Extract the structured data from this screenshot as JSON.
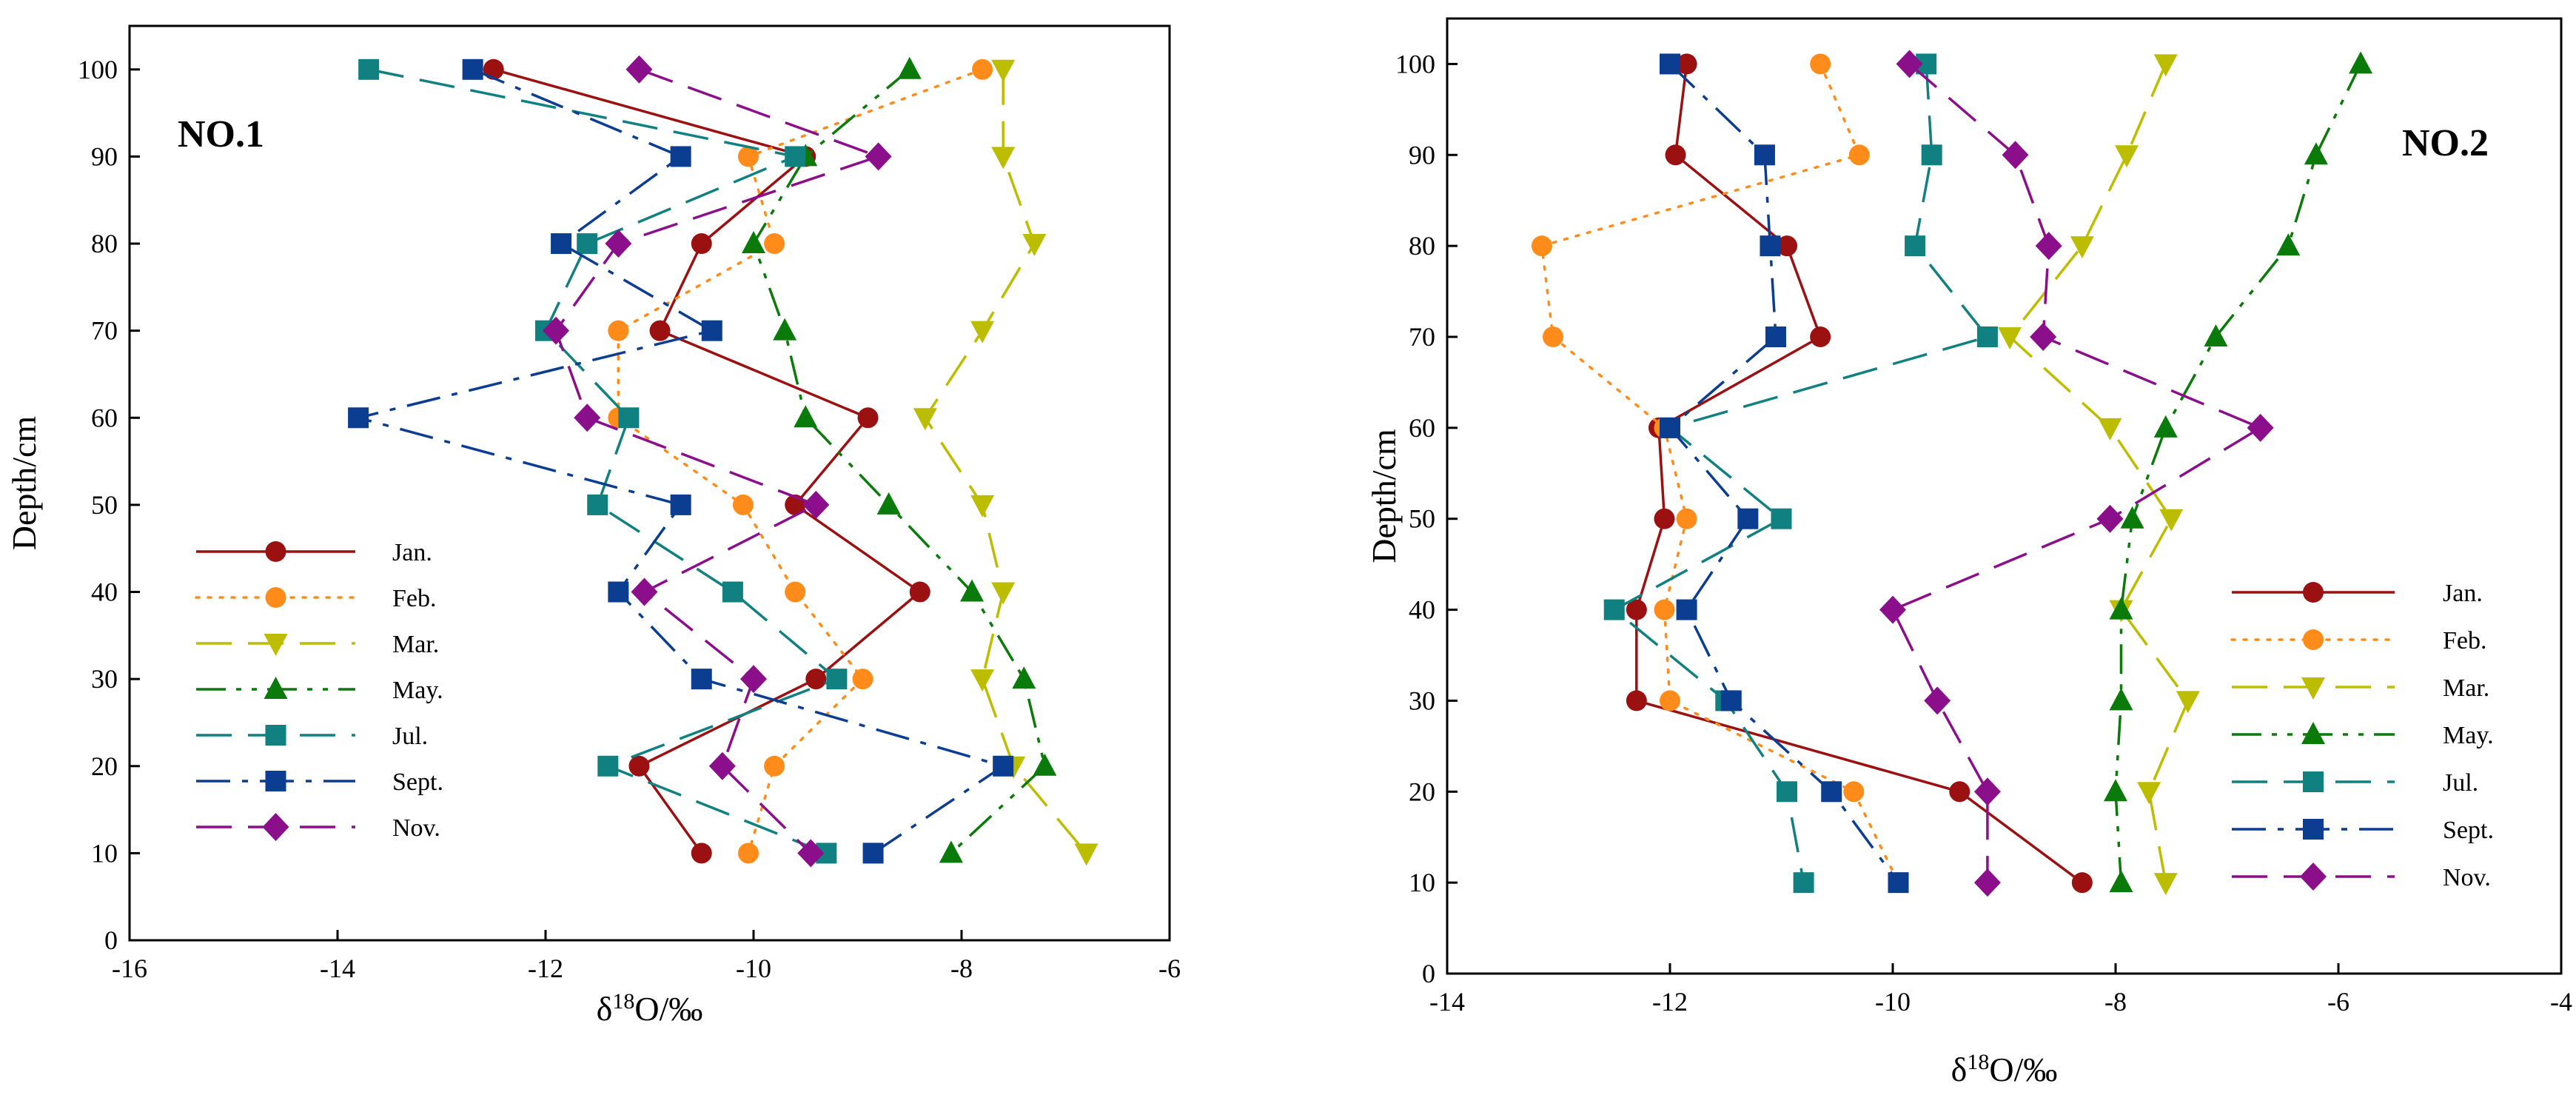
{
  "chart_data": [
    {
      "type": "line",
      "title": "NO.1",
      "xlabel": "δ18O/‰",
      "xlabel_base": "δ",
      "xlabel_sup": "18",
      "xlabel_rest": "O/‰",
      "ylabel": "Depth/cm",
      "xlim": [
        -16,
        -6
      ],
      "ylim": [
        0,
        105
      ],
      "xticks": [
        -16,
        -14,
        -12,
        -10,
        -8,
        -6
      ],
      "yticks": [
        0,
        10,
        20,
        30,
        40,
        50,
        60,
        70,
        80,
        90,
        100
      ],
      "legend_position": "center-left",
      "series": [
        {
          "name": "Jan.",
          "color": "#9B1010",
          "marker": "circle",
          "dash": "solid",
          "points": [
            [
              -12.5,
              100
            ],
            [
              -9.5,
              90
            ],
            [
              -10.5,
              80
            ],
            [
              -10.9,
              70
            ],
            [
              -8.9,
              60
            ],
            [
              -9.6,
              50
            ],
            [
              -8.4,
              40
            ],
            [
              -9.4,
              30
            ],
            [
              -11.1,
              20
            ],
            [
              -10.5,
              10
            ]
          ]
        },
        {
          "name": "Feb.",
          "color": "#FF8C1A",
          "marker": "circle",
          "dash": "dot",
          "points": [
            [
              -7.8,
              100
            ],
            [
              -10.05,
              90
            ],
            [
              -9.8,
              80
            ],
            [
              -11.3,
              70
            ],
            [
              -11.3,
              60
            ],
            [
              -10.1,
              50
            ],
            [
              -9.6,
              40
            ],
            [
              -8.95,
              30
            ],
            [
              -9.8,
              20
            ],
            [
              -10.05,
              10
            ]
          ]
        },
        {
          "name": "Mar.",
          "color": "#BDBD00",
          "marker": "triangle-down",
          "dash": "long-dash",
          "points": [
            [
              -7.6,
              100
            ],
            [
              -7.6,
              90
            ],
            [
              -7.3,
              80
            ],
            [
              -7.8,
              70
            ],
            [
              -8.35,
              60
            ],
            [
              -7.8,
              50
            ],
            [
              -7.6,
              40
            ],
            [
              -7.8,
              30
            ],
            [
              -7.5,
              20
            ],
            [
              -6.8,
              10
            ]
          ]
        },
        {
          "name": "May.",
          "color": "#0A7A0A",
          "marker": "triangle-up",
          "dash": "dash-dot-dot",
          "points": [
            [
              -8.5,
              100
            ],
            [
              -9.5,
              90
            ],
            [
              -10.0,
              80
            ],
            [
              -9.7,
              70
            ],
            [
              -9.5,
              60
            ],
            [
              -8.7,
              50
            ],
            [
              -7.9,
              40
            ],
            [
              -7.4,
              30
            ],
            [
              -7.2,
              20
            ],
            [
              -8.1,
              10
            ]
          ]
        },
        {
          "name": "Jul.",
          "color": "#118080",
          "marker": "square",
          "dash": "long-dash",
          "points": [
            [
              -13.7,
              100
            ],
            [
              -9.6,
              90
            ],
            [
              -11.6,
              80
            ],
            [
              -12.0,
              70
            ],
            [
              -11.2,
              60
            ],
            [
              -11.5,
              50
            ],
            [
              -10.2,
              40
            ],
            [
              -9.2,
              30
            ],
            [
              -11.4,
              20
            ],
            [
              -9.3,
              10
            ]
          ]
        },
        {
          "name": "Sept.",
          "color": "#0B3D91",
          "marker": "square",
          "dash": "dash-dot",
          "points": [
            [
              -12.7,
              100
            ],
            [
              -10.7,
              90
            ],
            [
              -11.85,
              80
            ],
            [
              -10.4,
              70
            ],
            [
              -13.8,
              60
            ],
            [
              -10.7,
              50
            ],
            [
              -11.3,
              40
            ],
            [
              -10.5,
              30
            ],
            [
              -7.6,
              20
            ],
            [
              -8.85,
              10
            ]
          ]
        },
        {
          "name": "Nov.",
          "color": "#8B0F8B",
          "marker": "diamond",
          "dash": "long-dash",
          "points": [
            [
              -11.1,
              100
            ],
            [
              -8.8,
              90
            ],
            [
              -11.3,
              80
            ],
            [
              -11.9,
              70
            ],
            [
              -11.6,
              60
            ],
            [
              -9.4,
              50
            ],
            [
              -11.05,
              40
            ],
            [
              -10.0,
              30
            ],
            [
              -10.3,
              20
            ],
            [
              -9.45,
              10
            ]
          ]
        }
      ]
    },
    {
      "type": "line",
      "title": "NO.2",
      "xlabel": "δ18O/‰",
      "xlabel_base": "δ",
      "xlabel_sup": "18",
      "xlabel_rest": "O/‰",
      "ylabel": "Depth/cm",
      "xlim": [
        -14,
        -4
      ],
      "ylim": [
        0,
        105
      ],
      "xticks": [
        -14,
        -12,
        -10,
        -8,
        -6,
        -4
      ],
      "yticks": [
        0,
        10,
        20,
        30,
        40,
        50,
        60,
        70,
        80,
        90,
        100
      ],
      "legend_position": "lower-right",
      "series": [
        {
          "name": "Jan.",
          "color": "#9B1010",
          "marker": "circle",
          "dash": "solid",
          "points": [
            [
              -11.85,
              100
            ],
            [
              -11.95,
              90
            ],
            [
              -10.95,
              80
            ],
            [
              -10.65,
              70
            ],
            [
              -12.1,
              60
            ],
            [
              -12.05,
              50
            ],
            [
              -12.3,
              40
            ],
            [
              -12.3,
              30
            ],
            [
              -9.4,
              20
            ],
            [
              -8.3,
              10
            ]
          ]
        },
        {
          "name": "Feb.",
          "color": "#FF8C1A",
          "marker": "circle",
          "dash": "dot",
          "points": [
            [
              -10.65,
              100
            ],
            [
              -10.3,
              90
            ],
            [
              -13.15,
              80
            ],
            [
              -13.05,
              70
            ],
            [
              -12.05,
              60
            ],
            [
              -11.85,
              50
            ],
            [
              -12.05,
              40
            ],
            [
              -12.0,
              30
            ],
            [
              -10.35,
              20
            ],
            [
              -9.95,
              10
            ]
          ]
        },
        {
          "name": "Mar.",
          "color": "#BDBD00",
          "marker": "triangle-down",
          "dash": "long-dash",
          "points": [
            [
              -7.55,
              100
            ],
            [
              -7.9,
              90
            ],
            [
              -8.3,
              80
            ],
            [
              -8.95,
              70
            ],
            [
              -8.05,
              60
            ],
            [
              -7.5,
              50
            ],
            [
              -7.95,
              40
            ],
            [
              -7.35,
              30
            ],
            [
              -7.7,
              20
            ],
            [
              -7.55,
              10
            ]
          ]
        },
        {
          "name": "May.",
          "color": "#0A7A0A",
          "marker": "triangle-up",
          "dash": "dash-dot-dot",
          "points": [
            [
              -5.8,
              100
            ],
            [
              -6.2,
              90
            ],
            [
              -6.45,
              80
            ],
            [
              -7.1,
              70
            ],
            [
              -7.55,
              60
            ],
            [
              -7.85,
              50
            ],
            [
              -7.95,
              40
            ],
            [
              -7.95,
              30
            ],
            [
              -8.0,
              20
            ],
            [
              -7.95,
              10
            ]
          ]
        },
        {
          "name": "Jul.",
          "color": "#118080",
          "marker": "square",
          "dash": "long-dash",
          "points": [
            [
              -9.7,
              100
            ],
            [
              -9.65,
              90
            ],
            [
              -9.8,
              80
            ],
            [
              -9.15,
              70
            ],
            [
              -12.0,
              60
            ],
            [
              -11.0,
              50
            ],
            [
              -12.5,
              40
            ],
            [
              -11.5,
              30
            ],
            [
              -10.95,
              20
            ],
            [
              -10.8,
              10
            ]
          ]
        },
        {
          "name": "Sept.",
          "color": "#0B3D91",
          "marker": "square",
          "dash": "dash-dot",
          "points": [
            [
              -12.0,
              100
            ],
            [
              -11.15,
              90
            ],
            [
              -11.1,
              80
            ],
            [
              -11.05,
              70
            ],
            [
              -12.0,
              60
            ],
            [
              -11.3,
              50
            ],
            [
              -11.85,
              40
            ],
            [
              -11.45,
              30
            ],
            [
              -10.55,
              20
            ],
            [
              -9.95,
              10
            ]
          ]
        },
        {
          "name": "Nov.",
          "color": "#8B0F8B",
          "marker": "diamond",
          "dash": "long-dash",
          "points": [
            [
              -9.85,
              100
            ],
            [
              -8.9,
              90
            ],
            [
              -8.6,
              80
            ],
            [
              -8.65,
              70
            ],
            [
              -6.7,
              60
            ],
            [
              -8.05,
              50
            ],
            [
              -10.0,
              40
            ],
            [
              -9.6,
              30
            ],
            [
              -9.15,
              20
            ],
            [
              -9.15,
              10
            ]
          ]
        }
      ]
    }
  ]
}
